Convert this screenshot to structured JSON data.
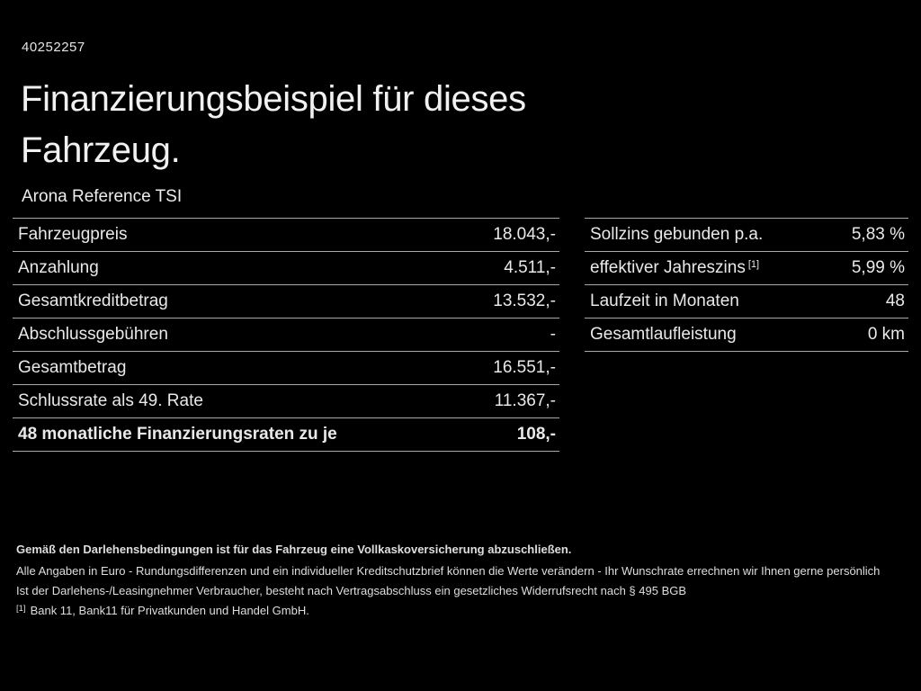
{
  "page": {
    "id": "40252257",
    "title_line1": "Finanzierungsbeispiel für dieses",
    "title_line2": "Fahrzeug.",
    "subtitle": "Arona Reference TSI"
  },
  "left_table": {
    "rows": [
      {
        "label": "Fahrzeugpreis",
        "value": "18.043,-"
      },
      {
        "label": "Anzahlung",
        "value": "4.511,-"
      },
      {
        "label": "Gesamtkreditbetrag",
        "value": "13.532,-"
      },
      {
        "label": "Abschlussgebühren",
        "value": "-"
      },
      {
        "label": "Gesamtbetrag",
        "value": "16.551,-"
      },
      {
        "label": "Schlussrate als 49. Rate",
        "value": "11.367,-"
      },
      {
        "label": "48 monatliche Finanzierungsraten zu je",
        "value": "108,-"
      }
    ]
  },
  "right_table": {
    "rows": [
      {
        "label": "Sollzins gebunden p.a.",
        "value": "5,83 %"
      },
      {
        "label": "effektiver Jahreszins",
        "label_sup": "[1]",
        "value": "5,99 %"
      },
      {
        "label": "Laufzeit in Monaten",
        "value": "48"
      },
      {
        "label": "Gesamtlaufleistung",
        "value": "0 km"
      }
    ]
  },
  "footer": {
    "insurance_note": "Gemäß den Darlehensbedingungen ist für das Fahrzeug eine Vollkaskoversicherung abzuschließen.",
    "disclaimer": "Alle Angaben in Euro - Rundungsdifferenzen und ein individueller Kreditschutzbrief können die Werte verändern - Ihr Wunschrate errechnen wir Ihnen gerne persönlich",
    "withdrawal_note": "Ist der Darlehens-/Leasingnehmer Verbraucher, besteht nach Vertragsabschluss ein gesetzliches Widerrufsrecht nach § 495 BGB",
    "footnote_marker": "[1]",
    "footnote_text": "Bank 11, Bank11 für Privatkunden und Handel GmbH."
  },
  "colors": {
    "background": "#000000",
    "text": "#ececec",
    "divider": "#a8a8a8"
  }
}
